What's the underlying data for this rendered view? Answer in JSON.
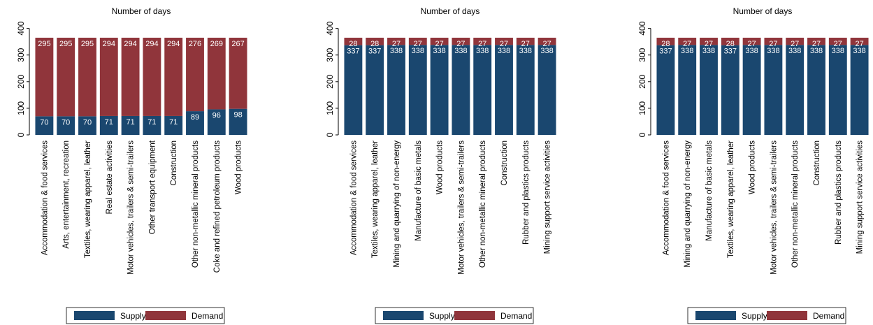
{
  "chart_data": [
    {
      "type": "stacked_bar",
      "title": "Number of days",
      "categories": [
        "Accommodation & food services",
        "Arts, entertainment, recreation",
        "Textiles, wearing apparel, leather",
        "Real estate activities",
        "Motor vehicles, trailers & semi-trailers",
        "Other transport equipment",
        "Construction",
        "Other non-metallic mineral products",
        "Coke and refined petroleum products",
        "Wood products"
      ],
      "series": [
        {
          "name": "Supply",
          "color": "#1a476f",
          "values": [
            70,
            70,
            70,
            71,
            71,
            71,
            71,
            89,
            96,
            98
          ]
        },
        {
          "name": "Demand",
          "color": "#90353b",
          "values": [
            295,
            295,
            295,
            294,
            294,
            294,
            294,
            276,
            269,
            267
          ]
        }
      ],
      "ylim": [
        0,
        420
      ],
      "yticks": [
        0,
        100,
        200,
        300,
        400
      ],
      "grid": false,
      "legend": "bottom"
    },
    {
      "type": "stacked_bar",
      "title": "Number of days",
      "categories": [
        "Accommodation & food services",
        "Textiles, wearing apparel, leather",
        "Mining and quarrying of non-energy",
        "Manufacture of basic metals",
        "Wood products",
        "Motor vehicles, trailers & semi-trailers",
        "Other non-metallic mineral products",
        "Construction",
        "Rubber and plastics products",
        "Mining support service activities"
      ],
      "series": [
        {
          "name": "Supply",
          "color": "#1a476f",
          "values": [
            337,
            337,
            338,
            338,
            338,
            338,
            338,
            338,
            338,
            338
          ]
        },
        {
          "name": "Demand",
          "color": "#90353b",
          "values": [
            28,
            28,
            27,
            27,
            27,
            27,
            27,
            27,
            27,
            27
          ]
        }
      ],
      "ylim": [
        0,
        420
      ],
      "yticks": [
        0,
        100,
        200,
        300,
        400
      ],
      "grid": false,
      "legend": "bottom"
    },
    {
      "type": "stacked_bar",
      "title": "Number of days",
      "categories": [
        "Accommodation & food services",
        "Mining and quarrying of non-energy",
        "Manufacture of basic metals",
        "Textiles, wearing apparel, leather",
        "Wood products",
        "Motor vehicles, trailers & semi-trailers",
        "Other non-metallic mineral products",
        "Construction",
        "Rubber and plastics products",
        "Mining support service activities"
      ],
      "series": [
        {
          "name": "Supply",
          "color": "#1a476f",
          "values": [
            337,
            338,
            338,
            337,
            338,
            338,
            338,
            338,
            338,
            338
          ]
        },
        {
          "name": "Demand",
          "color": "#90353b",
          "values": [
            28,
            27,
            27,
            28,
            27,
            27,
            27,
            27,
            27,
            27
          ]
        }
      ],
      "ylim": [
        0,
        420
      ],
      "yticks": [
        0,
        100,
        200,
        300,
        400
      ],
      "grid": false,
      "legend": "bottom"
    }
  ]
}
